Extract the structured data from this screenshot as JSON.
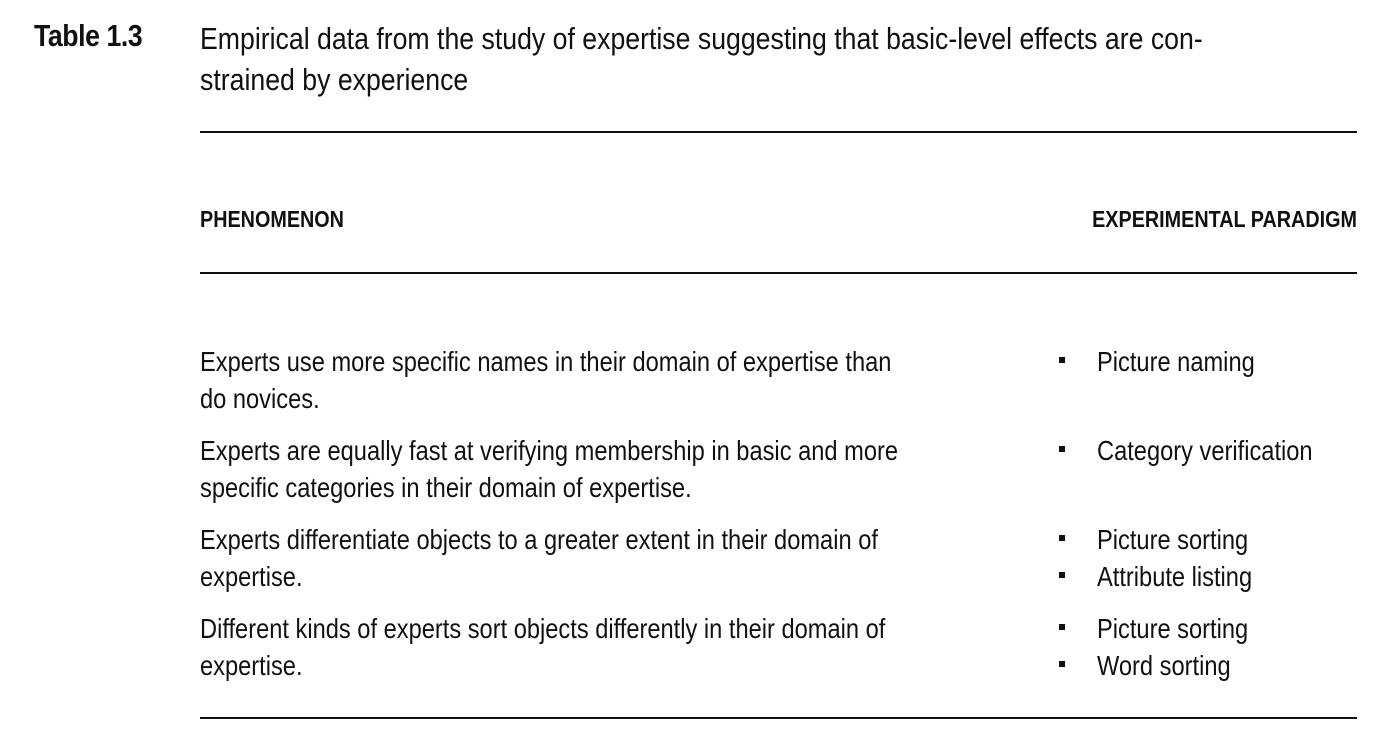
{
  "caption": {
    "label": "Table 1.3",
    "line1": "Empirical data from the study of expertise suggesting that basic-level effects are con-",
    "line2": "strained by experience"
  },
  "table": {
    "headers": {
      "phenomenon": "PHENOMENON",
      "paradigm": "EXPERIMENTAL PARADIGM"
    },
    "rows": [
      {
        "phenomenon_lines": [
          "Experts use more specific names in their domain of expertise than",
          "do novices."
        ],
        "paradigms": [
          "Picture naming"
        ]
      },
      {
        "phenomenon_lines": [
          "Experts are equally fast at verifying membership in basic and more",
          "specific categories in their domain of expertise."
        ],
        "paradigms": [
          "Category verification"
        ]
      },
      {
        "phenomenon_lines": [
          "Experts differentiate objects to a greater extent in their domain of",
          "expertise."
        ],
        "paradigms": [
          "Picture sorting",
          "Attribute listing"
        ]
      },
      {
        "phenomenon_lines": [
          "Different kinds of experts sort objects differently in their domain of",
          "expertise."
        ],
        "paradigms": [
          "Picture sorting",
          "Word sorting"
        ]
      }
    ]
  }
}
